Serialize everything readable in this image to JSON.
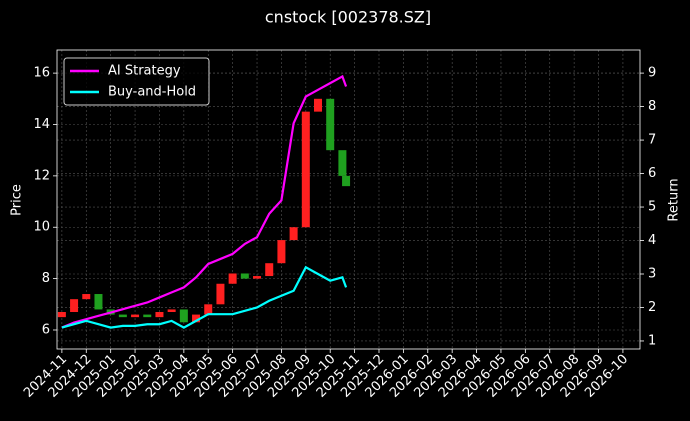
{
  "chart_data": {
    "type": "candlestick",
    "title": "cnstock [002378.SZ]",
    "ylabel": "Price",
    "y2label": "Return",
    "x": [
      0,
      0.5,
      1,
      1.5,
      2,
      2.5,
      3,
      3.5,
      4,
      4.5,
      5,
      5.5,
      6,
      6.5,
      7,
      7.5,
      8,
      8.5,
      9,
      9.5,
      10,
      10.5,
      11,
      11.5,
      11.65
    ],
    "open": [
      6.5,
      6.7,
      7.2,
      7.4,
      6.8,
      6.6,
      6.5,
      6.6,
      6.5,
      6.7,
      6.8,
      6.3,
      6.6,
      7.0,
      7.8,
      8.2,
      8.0,
      8.1,
      8.6,
      9.5,
      10.0,
      14.5,
      15.0,
      13.0,
      12.0
    ],
    "close": [
      6.7,
      7.2,
      7.4,
      6.8,
      6.6,
      6.5,
      6.6,
      6.5,
      6.7,
      6.8,
      6.3,
      6.6,
      7.0,
      7.8,
      8.2,
      8.0,
      8.1,
      8.6,
      9.5,
      10.0,
      14.5,
      15.0,
      13.0,
      12.0,
      11.6
    ],
    "up_color": "#ff2020",
    "down_color": "#1fa01f",
    "series": [
      {
        "name": "AI Strategy",
        "color": "#ff00ff",
        "axis": "y2",
        "values": [
          1.4,
          1.55,
          1.65,
          1.75,
          1.85,
          1.95,
          2.05,
          2.15,
          2.3,
          2.45,
          2.6,
          2.9,
          3.3,
          3.45,
          3.6,
          3.9,
          4.1,
          4.8,
          5.2,
          7.5,
          8.3,
          8.5,
          8.7,
          8.9,
          8.6
        ]
      },
      {
        "name": "Buy-and-Hold",
        "color": "#00ffff",
        "axis": "y2",
        "values": [
          1.4,
          1.5,
          1.6,
          1.5,
          1.4,
          1.45,
          1.45,
          1.5,
          1.5,
          1.6,
          1.4,
          1.6,
          1.8,
          1.8,
          1.8,
          1.9,
          2.0,
          2.2,
          2.35,
          2.5,
          3.2,
          3.0,
          2.8,
          2.9,
          2.6
        ]
      }
    ],
    "xlim": [
      -0.2,
      23.7
    ],
    "xticks": [
      {
        "value": 0,
        "label": "2024-11"
      },
      {
        "value": 1,
        "label": "2024-12"
      },
      {
        "value": 2,
        "label": "2025-01"
      },
      {
        "value": 3,
        "label": "2025-02"
      },
      {
        "value": 4,
        "label": "2025-03"
      },
      {
        "value": 5,
        "label": "2025-04"
      },
      {
        "value": 6,
        "label": "2025-05"
      },
      {
        "value": 7,
        "label": "2025-06"
      },
      {
        "value": 8,
        "label": "2025-07"
      },
      {
        "value": 9,
        "label": "2025-08"
      },
      {
        "value": 10,
        "label": "2025-09"
      },
      {
        "value": 11,
        "label": "2025-10"
      },
      {
        "value": 12,
        "label": "2025-11"
      },
      {
        "value": 13,
        "label": "2025-12"
      },
      {
        "value": 14,
        "label": "2026-01"
      },
      {
        "value": 15,
        "label": "2026-02"
      },
      {
        "value": 16,
        "label": "2026-03"
      },
      {
        "value": 17,
        "label": "2026-04"
      },
      {
        "value": 18,
        "label": "2026-05"
      },
      {
        "value": 19,
        "label": "2026-06"
      },
      {
        "value": 20,
        "label": "2026-07"
      },
      {
        "value": 21,
        "label": "2026-08"
      },
      {
        "value": 22,
        "label": "2026-09"
      },
      {
        "value": 23,
        "label": "2026-10"
      }
    ],
    "ylim": [
      5.26,
      16.9
    ],
    "yticks": [
      6,
      8,
      10,
      12,
      14,
      16
    ],
    "y2lim": [
      0.76,
      9.69
    ],
    "y2ticks": [
      1,
      2,
      3,
      4,
      5,
      6,
      7,
      8,
      9
    ],
    "grid": true,
    "legend": "upper-left"
  }
}
